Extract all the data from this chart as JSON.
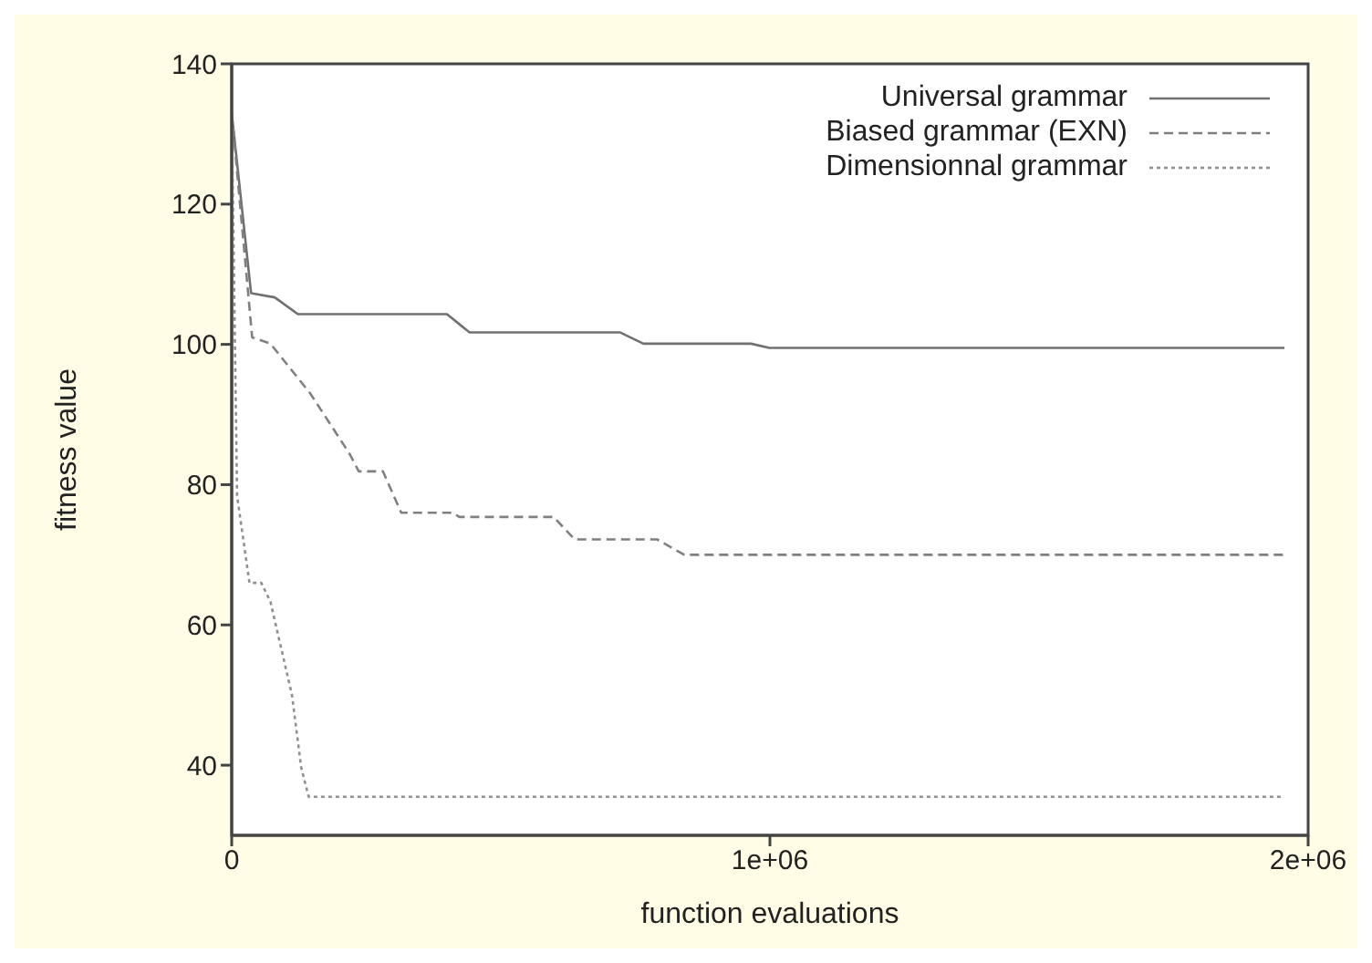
{
  "chart_data": {
    "type": "line",
    "xlabel": "function evaluations",
    "ylabel": "fitness value",
    "xlim": [
      0,
      2000000
    ],
    "xticks": [
      {
        "value": 0,
        "label": "0"
      },
      {
        "value": 1000000,
        "label": "1e+06"
      },
      {
        "value": 2000000,
        "label": "2e+06"
      }
    ],
    "ylim": [
      30,
      140
    ],
    "yticks": [
      40,
      60,
      80,
      100,
      120,
      140
    ],
    "legend": "top right",
    "marker": "none",
    "series": [
      {
        "name": "Universal grammar",
        "color": "#707070",
        "line_style": "solid",
        "x": [
          0,
          36000,
          80000,
          123000,
          400000,
          442000,
          722000,
          765000,
          965000,
          999000,
          1956000
        ],
        "values": [
          133,
          107.3,
          106.7,
          104.3,
          104.3,
          101.7,
          101.7,
          100.1,
          100.1,
          99.5,
          99.5
        ]
      },
      {
        "name": "Biased grammar (EXN)",
        "color": "#808080",
        "line_style": "dashed",
        "x": [
          0,
          38000,
          72000,
          146000,
          219000,
          236000,
          281000,
          315000,
          411000,
          423000,
          598000,
          637000,
          790000,
          841000,
          1956000
        ],
        "values": [
          133,
          101,
          100.1,
          93,
          84.4,
          81.9,
          81.9,
          76,
          76,
          75.4,
          75.4,
          72.2,
          72.2,
          70,
          70
        ]
      },
      {
        "name": "Dimensionnal grammar",
        "color": "#909090",
        "line_style": "dotted",
        "x": [
          0,
          10000,
          33000,
          55000,
          72000,
          112000,
          129000,
          143000,
          1956000
        ],
        "values": [
          133,
          78.4,
          66,
          66,
          63.3,
          50,
          39.7,
          35.5,
          35.5
        ]
      }
    ]
  }
}
